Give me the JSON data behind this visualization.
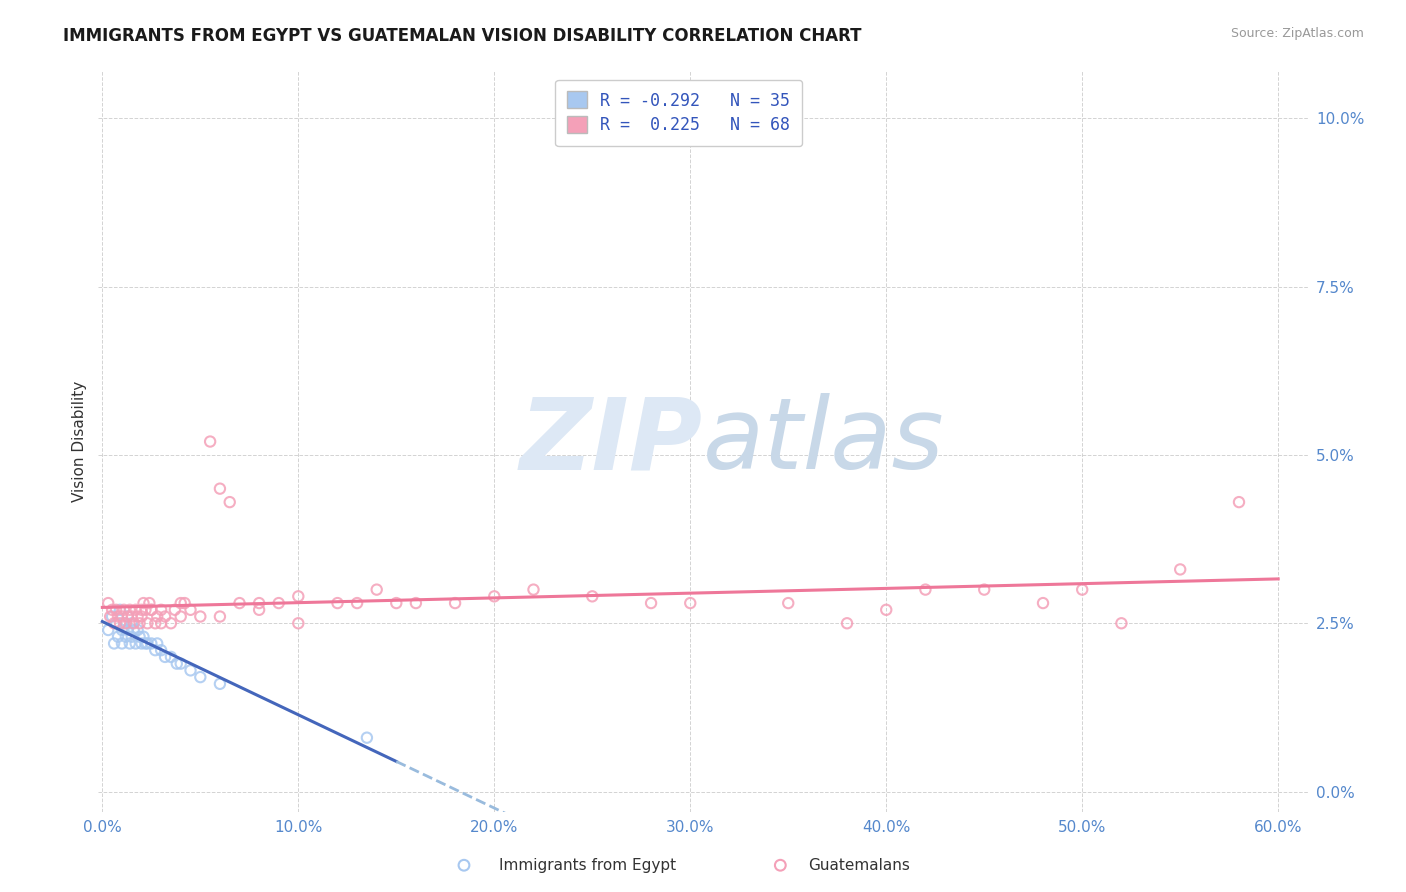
{
  "title": "IMMIGRANTS FROM EGYPT VS GUATEMALAN VISION DISABILITY CORRELATION CHART",
  "source": "Source: ZipAtlas.com",
  "ylabel": "Vision Disability",
  "x_tick_vals": [
    0.0,
    0.1,
    0.2,
    0.3,
    0.4,
    0.5,
    0.6
  ],
  "y_tick_vals": [
    0.0,
    0.025,
    0.05,
    0.075,
    0.1
  ],
  "xlim": [
    -0.002,
    0.615
  ],
  "ylim": [
    -0.003,
    0.107
  ],
  "legend_label1": "R = -0.292   N = 35",
  "legend_label2": "R =  0.225   N = 68",
  "color_egypt": "#a8c8f0",
  "color_guatemalan": "#f4a0b8",
  "line_color_egypt": "#4466bb",
  "line_color_egypt_dash": "#99bbdd",
  "line_color_guatemalan": "#ee7799",
  "watermark_color": "#dde8f5",
  "background_color": "#ffffff",
  "grid_color": "#c8c8c8",
  "axis_label_color": "#5588cc",
  "title_fontsize": 12,
  "scatter_size": 55,
  "egypt_x": [
    0.003,
    0.005,
    0.006,
    0.007,
    0.008,
    0.009,
    0.01,
    0.01,
    0.011,
    0.012,
    0.013,
    0.013,
    0.014,
    0.015,
    0.015,
    0.016,
    0.017,
    0.018,
    0.019,
    0.02,
    0.021,
    0.022,
    0.023,
    0.025,
    0.027,
    0.028,
    0.03,
    0.032,
    0.035,
    0.038,
    0.04,
    0.045,
    0.05,
    0.06,
    0.135
  ],
  "egypt_y": [
    0.024,
    0.026,
    0.022,
    0.025,
    0.023,
    0.027,
    0.024,
    0.022,
    0.025,
    0.023,
    0.026,
    0.024,
    0.022,
    0.025,
    0.023,
    0.024,
    0.022,
    0.024,
    0.023,
    0.022,
    0.023,
    0.022,
    0.022,
    0.022,
    0.021,
    0.022,
    0.021,
    0.02,
    0.02,
    0.019,
    0.019,
    0.018,
    0.017,
    0.016,
    0.008
  ],
  "guatemalan_x": [
    0.003,
    0.004,
    0.005,
    0.006,
    0.007,
    0.008,
    0.009,
    0.01,
    0.011,
    0.012,
    0.013,
    0.014,
    0.015,
    0.016,
    0.017,
    0.018,
    0.019,
    0.02,
    0.021,
    0.022,
    0.023,
    0.024,
    0.025,
    0.027,
    0.028,
    0.03,
    0.032,
    0.035,
    0.037,
    0.04,
    0.042,
    0.045,
    0.05,
    0.055,
    0.06,
    0.065,
    0.07,
    0.08,
    0.09,
    0.1,
    0.12,
    0.14,
    0.16,
    0.18,
    0.2,
    0.22,
    0.25,
    0.28,
    0.3,
    0.35,
    0.38,
    0.4,
    0.42,
    0.45,
    0.48,
    0.5,
    0.52,
    0.55,
    0.58,
    0.13,
    0.15,
    0.1,
    0.08,
    0.06,
    0.04,
    0.03,
    0.025,
    0.02
  ],
  "guatemalan_y": [
    0.028,
    0.026,
    0.027,
    0.025,
    0.027,
    0.026,
    0.025,
    0.026,
    0.027,
    0.025,
    0.026,
    0.027,
    0.026,
    0.025,
    0.027,
    0.026,
    0.025,
    0.026,
    0.028,
    0.027,
    0.025,
    0.028,
    0.027,
    0.025,
    0.026,
    0.027,
    0.026,
    0.025,
    0.027,
    0.026,
    0.028,
    0.027,
    0.026,
    0.052,
    0.045,
    0.043,
    0.028,
    0.028,
    0.028,
    0.029,
    0.028,
    0.03,
    0.028,
    0.028,
    0.029,
    0.03,
    0.029,
    0.028,
    0.028,
    0.028,
    0.025,
    0.027,
    0.03,
    0.03,
    0.028,
    0.03,
    0.025,
    0.033,
    0.043,
    0.028,
    0.028,
    0.025,
    0.027,
    0.026,
    0.028,
    0.025,
    0.027,
    0.027
  ]
}
